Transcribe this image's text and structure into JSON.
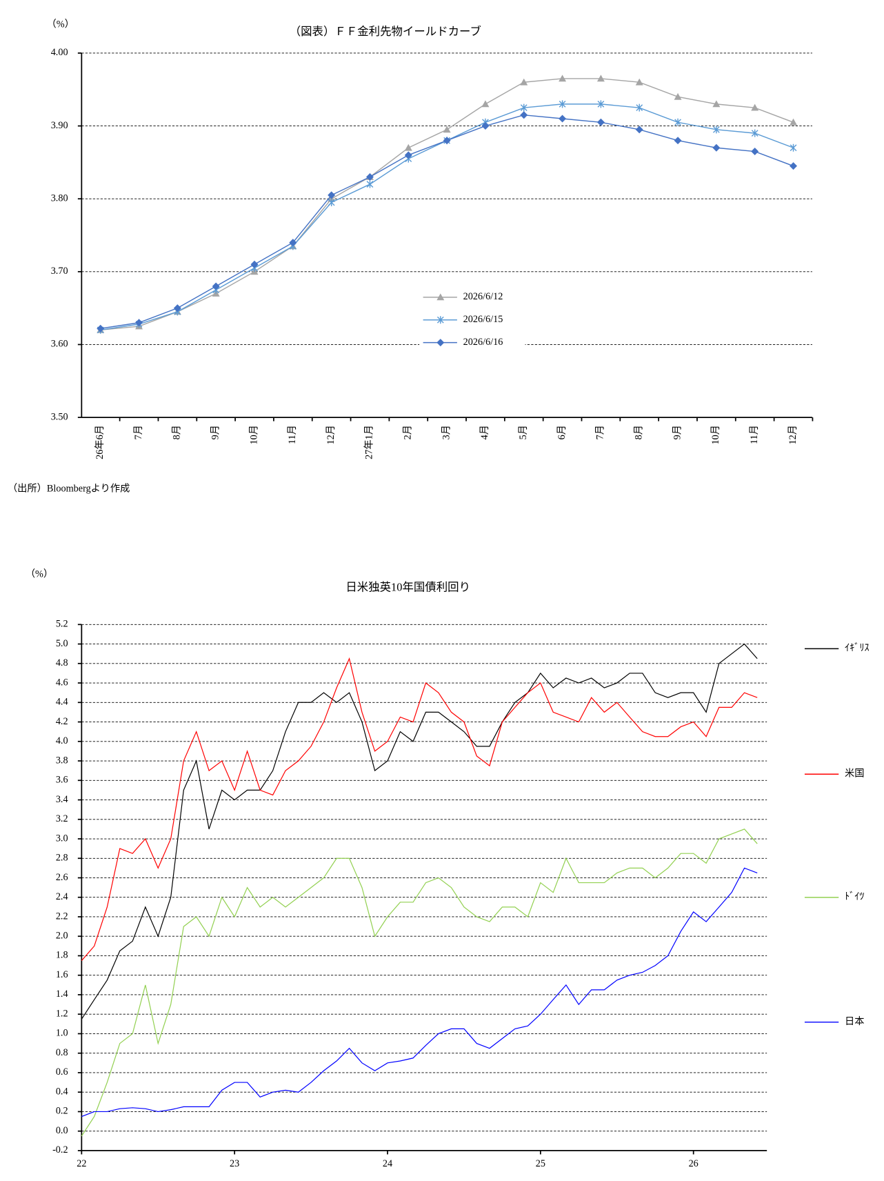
{
  "chart_data": [
    {
      "type": "line",
      "title": "（図表）ＦＦ金利先物イールドカーブ",
      "unit": "（%）",
      "categories": [
        "26年6月",
        "7月",
        "8月",
        "9月",
        "10月",
        "11月",
        "12月",
        "27年1月",
        "2月",
        "3月",
        "4月",
        "5月",
        "6月",
        "7月",
        "8月",
        "9月",
        "10月",
        "11月",
        "12月"
      ],
      "ylim": [
        3.5,
        4.0
      ],
      "yticks": [
        {
          "value": 3.5,
          "label": "3.50"
        },
        {
          "value": 3.6,
          "label": "3.60"
        },
        {
          "value": 3.7,
          "label": "3.70"
        },
        {
          "value": 3.8,
          "label": "3.80"
        },
        {
          "value": 3.9,
          "label": "3.90"
        },
        {
          "value": 4.0,
          "label": "4.00"
        }
      ],
      "grid": true,
      "series": [
        {
          "name": "2026/6/12",
          "color": "#a5a5a5",
          "marker": "triangle",
          "values": [
            3.62,
            3.625,
            3.645,
            3.67,
            3.7,
            3.735,
            3.8,
            3.83,
            3.87,
            3.895,
            3.93,
            3.96,
            3.965,
            3.965,
            3.96,
            3.94,
            3.93,
            3.925,
            3.905
          ]
        },
        {
          "name": "2026/6/15",
          "color": "#5b9bd5",
          "marker": "star",
          "values": [
            3.62,
            3.628,
            3.645,
            3.675,
            3.705,
            3.735,
            3.795,
            3.82,
            3.855,
            3.88,
            3.905,
            3.925,
            3.93,
            3.93,
            3.925,
            3.905,
            3.895,
            3.89,
            3.87
          ]
        },
        {
          "name": "2026/6/16",
          "color": "#4472c4",
          "marker": "diamond",
          "values": [
            3.622,
            3.63,
            3.65,
            3.68,
            3.71,
            3.74,
            3.805,
            3.83,
            3.86,
            3.88,
            3.9,
            3.915,
            3.91,
            3.905,
            3.895,
            3.88,
            3.87,
            3.865,
            3.845
          ]
        }
      ]
    },
    {
      "type": "line",
      "title": "日米独英10年国債利回り",
      "unit": "（%）",
      "x": [
        2022,
        2022.083,
        2022.167,
        2022.25,
        2022.333,
        2022.417,
        2022.5,
        2022.583,
        2022.667,
        2022.75,
        2022.833,
        2022.917,
        2023,
        2023.083,
        2023.167,
        2023.25,
        2023.333,
        2023.417,
        2023.5,
        2023.583,
        2023.667,
        2023.75,
        2023.833,
        2023.917,
        2024,
        2024.083,
        2024.167,
        2024.25,
        2024.333,
        2024.417,
        2024.5,
        2024.583,
        2024.667,
        2024.75,
        2024.833,
        2024.917,
        2025,
        2025.083,
        2025.167,
        2025.25,
        2025.333,
        2025.417,
        2025.5,
        2025.583,
        2025.667,
        2025.75,
        2025.833,
        2025.917,
        2026,
        2026.083,
        2026.167,
        2026.25,
        2026.333,
        2026.417
      ],
      "xlim": [
        2022,
        2026.48
      ],
      "xticks": [
        {
          "value": 2022,
          "label": "22"
        },
        {
          "value": 2023,
          "label": "23"
        },
        {
          "value": 2024,
          "label": "24"
        },
        {
          "value": 2025,
          "label": "25"
        },
        {
          "value": 2026,
          "label": "26"
        }
      ],
      "ylim": [
        -0.2,
        5.2
      ],
      "yticks": [
        -0.2,
        {
          "value": 0,
          "label": "0.0"
        },
        0.2,
        0.4,
        0.6,
        0.8,
        {
          "value": 1,
          "label": "1.0"
        },
        1.2,
        1.4,
        1.6,
        1.8,
        {
          "value": 2,
          "label": "2.0"
        },
        2.2,
        2.4,
        2.6,
        2.8,
        {
          "value": 3,
          "label": "3.0"
        },
        3.2,
        3.4,
        3.6,
        3.8,
        {
          "value": 4,
          "label": "4.0"
        },
        4.2,
        4.4,
        4.6,
        4.8,
        {
          "value": 5,
          "label": "5.0"
        },
        5.2
      ],
      "grid": true,
      "legend": "right",
      "series": [
        {
          "name": "ｲｷﾞﾘｽ",
          "color": "#000000",
          "values": [
            1.15,
            1.35,
            1.55,
            1.85,
            1.95,
            2.3,
            2.0,
            2.4,
            3.5,
            3.8,
            3.1,
            3.5,
            3.4,
            3.5,
            3.5,
            3.7,
            4.1,
            4.4,
            4.4,
            4.5,
            4.4,
            4.5,
            4.2,
            3.7,
            3.8,
            4.1,
            4.0,
            4.3,
            4.3,
            4.2,
            4.1,
            3.95,
            3.95,
            4.2,
            4.4,
            4.5,
            4.7,
            4.55,
            4.65,
            4.6,
            4.65,
            4.55,
            4.6,
            4.7,
            4.7,
            4.5,
            4.45,
            4.5,
            4.5,
            4.3,
            4.8,
            4.9,
            5.0,
            4.85
          ]
        },
        {
          "name": "米国",
          "color": "#ff0000",
          "values": [
            1.75,
            1.9,
            2.3,
            2.9,
            2.85,
            3.0,
            2.7,
            3.0,
            3.8,
            4.1,
            3.7,
            3.8,
            3.5,
            3.9,
            3.5,
            3.45,
            3.7,
            3.8,
            3.95,
            4.2,
            4.55,
            4.85,
            4.3,
            3.9,
            4.0,
            4.25,
            4.2,
            4.6,
            4.5,
            4.3,
            4.2,
            3.85,
            3.75,
            4.2,
            4.35,
            4.5,
            4.6,
            4.3,
            4.25,
            4.2,
            4.45,
            4.3,
            4.4,
            4.25,
            4.1,
            4.05,
            4.05,
            4.15,
            4.2,
            4.05,
            4.35,
            4.35,
            4.5,
            4.45
          ]
        },
        {
          "name": "ﾄﾞｲﾂ",
          "color": "#92d050",
          "values": [
            -0.05,
            0.15,
            0.5,
            0.9,
            1.0,
            1.5,
            0.9,
            1.3,
            2.1,
            2.2,
            2.0,
            2.4,
            2.2,
            2.5,
            2.3,
            2.4,
            2.3,
            2.4,
            2.5,
            2.6,
            2.8,
            2.8,
            2.5,
            2.0,
            2.2,
            2.35,
            2.35,
            2.55,
            2.6,
            2.5,
            2.3,
            2.2,
            2.15,
            2.3,
            2.3,
            2.2,
            2.55,
            2.45,
            2.8,
            2.55,
            2.55,
            2.55,
            2.65,
            2.7,
            2.7,
            2.6,
            2.7,
            2.85,
            2.85,
            2.75,
            3.0,
            3.05,
            3.1,
            2.95
          ]
        },
        {
          "name": "日本",
          "color": "#0000ff",
          "values": [
            0.15,
            0.2,
            0.2,
            0.23,
            0.24,
            0.23,
            0.2,
            0.22,
            0.25,
            0.25,
            0.25,
            0.42,
            0.5,
            0.5,
            0.35,
            0.4,
            0.42,
            0.4,
            0.5,
            0.62,
            0.72,
            0.85,
            0.7,
            0.62,
            0.7,
            0.72,
            0.75,
            0.88,
            1.0,
            1.05,
            1.05,
            0.9,
            0.85,
            0.95,
            1.05,
            1.08,
            1.2,
            1.35,
            1.5,
            1.3,
            1.45,
            1.45,
            1.55,
            1.6,
            1.63,
            1.7,
            1.8,
            2.05,
            2.25,
            2.15,
            2.3,
            2.45,
            2.7,
            2.65
          ]
        }
      ]
    }
  ],
  "source": "（出所）Bloombergより作成"
}
